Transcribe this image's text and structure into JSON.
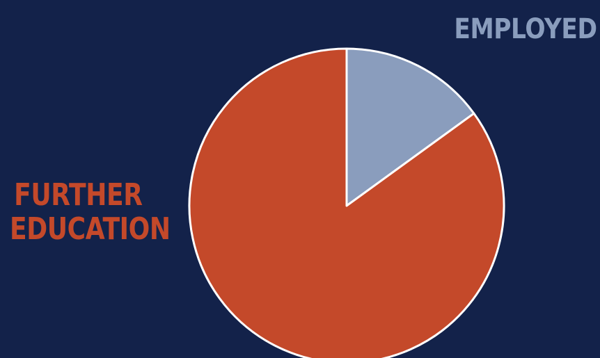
{
  "chart_data": {
    "type": "pie",
    "slices": [
      {
        "label": "EMPLOYED",
        "value": 15,
        "color": "#8a9dbd"
      },
      {
        "label": "FURTHER EDUCATION",
        "value": 85,
        "color": "#c4492a"
      }
    ],
    "start_angle_deg": 0,
    "direction": "clockwise",
    "label_lines": {
      "employed": [
        "EMPLOYED"
      ],
      "further_education": [
        "FURTHER",
        "EDUCATION"
      ]
    }
  },
  "colors": {
    "background": "#13224a",
    "slice_border": "#ffffff"
  }
}
